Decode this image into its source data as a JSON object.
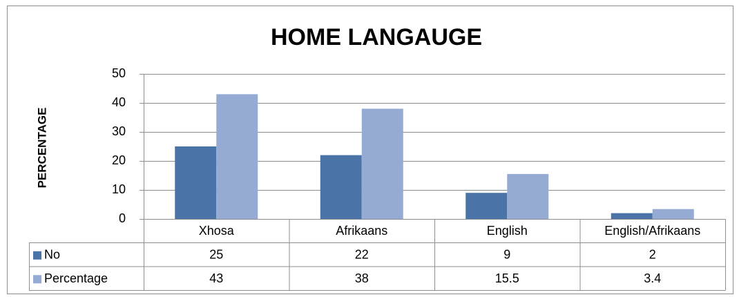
{
  "chart_data": {
    "type": "bar",
    "title": "HOME LANGAUGE",
    "y_label": "PERCENTAGE",
    "categories": [
      "Xhosa",
      "Afrikaans",
      "English",
      "English/Afrikaans"
    ],
    "series": [
      {
        "name": "No",
        "color": "#4a74a8",
        "values": [
          25,
          22,
          9,
          2
        ]
      },
      {
        "name": "Percentage",
        "color": "#95abd3",
        "values": [
          43,
          38,
          15.5,
          3.4
        ]
      }
    ],
    "ylim": [
      0,
      50
    ],
    "yticks": [
      0,
      10,
      20,
      30,
      40,
      50
    ],
    "grid": true,
    "data_table": true
  }
}
